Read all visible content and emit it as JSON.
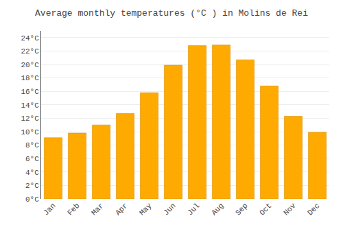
{
  "chart_data": {
    "type": "bar",
    "title": "Average monthly temperatures (°C ) in Molins de Rei",
    "categories": [
      "Jan",
      "Feb",
      "Mar",
      "Apr",
      "May",
      "Jun",
      "Jul",
      "Aug",
      "Sep",
      "Oct",
      "Nov",
      "Dec"
    ],
    "values": [
      9.1,
      9.8,
      11.0,
      12.7,
      15.8,
      19.9,
      22.8,
      22.9,
      20.7,
      16.8,
      12.3,
      9.9
    ],
    "color": "#FFAA00",
    "ylim": [
      0,
      25
    ],
    "yticks": [
      {
        "value": 0,
        "label": "0°C"
      },
      {
        "value": 2,
        "label": "2°C"
      },
      {
        "value": 4,
        "label": "4°C"
      },
      {
        "value": 6,
        "label": "6°C"
      },
      {
        "value": 8,
        "label": "8°C"
      },
      {
        "value": 10,
        "label": "10°C"
      },
      {
        "value": 12,
        "label": "12°C"
      },
      {
        "value": 14,
        "label": "14°C"
      },
      {
        "value": 16,
        "label": "16°C"
      },
      {
        "value": 18,
        "label": "18°C"
      },
      {
        "value": 20,
        "label": "20°C"
      },
      {
        "value": 22,
        "label": "22°C"
      },
      {
        "value": 24,
        "label": "24°C"
      }
    ],
    "grid": true
  }
}
